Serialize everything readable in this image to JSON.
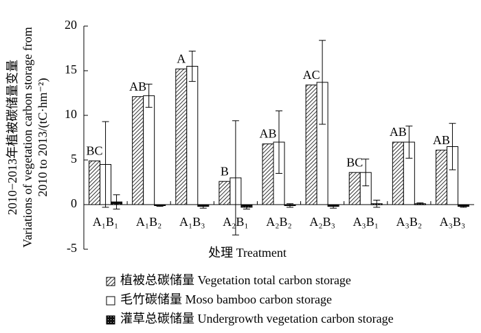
{
  "chart_data": {
    "type": "bar",
    "y_label": [
      "2010−2013年植被碳储量变量",
      "Variations of vegetation carbon storage from",
      "2010 to 2013/(tC·hm⁻²)"
    ],
    "x_label": "处理 Treatment",
    "categories": [
      "A₁B₁",
      "A₁B₂",
      "A₁B₃",
      "A₂B₁",
      "A₂B₂",
      "A₂B₃",
      "A₃B₁",
      "A₃B₂",
      "A₃B₃"
    ],
    "letters": [
      "BC",
      "AB",
      "A",
      "B",
      "AB",
      "AC",
      "BC",
      "AB",
      "AB"
    ],
    "series": [
      {
        "name": "植被总碳储量 Vegetation total carbon storage",
        "pattern": "hatch",
        "values": [
          4.9,
          12.1,
          15.2,
          2.6,
          6.8,
          13.4,
          3.6,
          7.0,
          6.1
        ]
      },
      {
        "name": "毛竹碳储量 Moso bamboo carbon storage",
        "pattern": "white",
        "values": [
          4.5,
          12.2,
          15.5,
          3.0,
          7.0,
          13.7,
          3.6,
          7.0,
          6.5
        ],
        "errors": [
          4.8,
          1.3,
          1.7,
          6.4,
          3.5,
          4.7,
          1.5,
          1.8,
          2.6
        ]
      },
      {
        "name": "灌草总碳储量 Undergrowth vegetation carbon storage",
        "pattern": "dark",
        "values": [
          0.3,
          -0.1,
          -0.2,
          -0.3,
          -0.1,
          -0.2,
          0.1,
          0.1,
          -0.2
        ],
        "errors": [
          0.8,
          0.1,
          0.2,
          0.2,
          0.2,
          0.2,
          0.4,
          0.1,
          0.1
        ]
      }
    ],
    "ylim": [
      -5,
      20
    ],
    "yticks": [
      -5,
      0,
      5,
      10,
      15,
      20
    ]
  }
}
